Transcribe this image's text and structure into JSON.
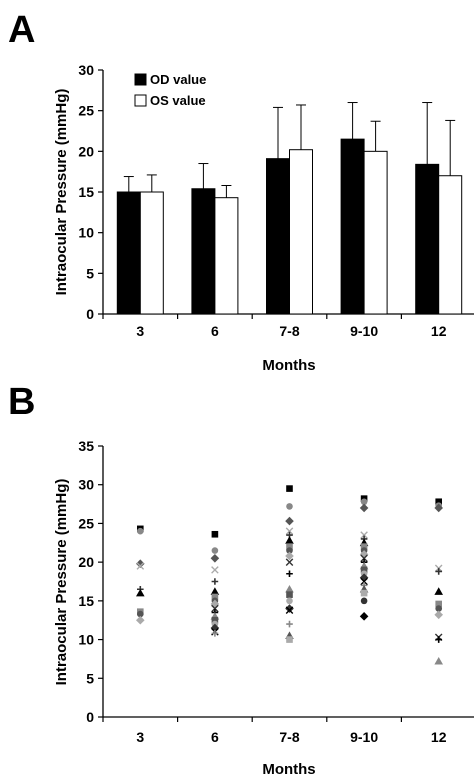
{
  "chart_data": [
    {
      "panel": "A",
      "type": "bar",
      "xlabel": "Months",
      "ylabel": "Intraocular Pressure (mmHg)",
      "ylim": [
        0,
        30
      ],
      "yticks": [
        0,
        5,
        10,
        15,
        20,
        25,
        30
      ],
      "categories": [
        "3",
        "6",
        "7-8",
        "9-10",
        "12"
      ],
      "legend_placement": "top-left",
      "grid": false,
      "series": [
        {
          "name": "OD value",
          "color": "#000000",
          "values": [
            15.0,
            15.4,
            19.1,
            21.5,
            18.4
          ],
          "error": [
            1.9,
            3.1,
            6.3,
            4.5,
            7.6
          ]
        },
        {
          "name": "OS value",
          "color": "#ffffff",
          "values": [
            15.0,
            14.3,
            20.2,
            20.0,
            17.0
          ],
          "error": [
            2.1,
            1.5,
            5.5,
            3.7,
            6.8
          ]
        }
      ]
    },
    {
      "panel": "B",
      "type": "scatter",
      "xlabel": "Months",
      "ylabel": "Intraocular Pressure (mmHg)",
      "ylim": [
        0,
        35
      ],
      "yticks": [
        0,
        5,
        10,
        15,
        20,
        25,
        30,
        35
      ],
      "categories": [
        "3",
        "6",
        "7-8",
        "9-10",
        "12"
      ],
      "grid": false,
      "points": [
        [
          24.3,
          24.0,
          19.8,
          19.5,
          16.5,
          16.0,
          13.6,
          13.3,
          12.5
        ],
        [
          23.6,
          21.5,
          20.5,
          19.0,
          17.5,
          16.2,
          15.5,
          15.0,
          14.6,
          14.0,
          13.5,
          13.0,
          12.5,
          12.0,
          11.5,
          11.0,
          10.8
        ],
        [
          29.5,
          27.2,
          25.3,
          24.0,
          23.5,
          22.8,
          22.0,
          21.5,
          20.8,
          20.0,
          18.5,
          16.5,
          15.8,
          15.0,
          14.0,
          13.8,
          12.0,
          10.5,
          10.0
        ],
        [
          28.2,
          27.8,
          27.0,
          23.5,
          23.0,
          22.5,
          22.0,
          21.5,
          21.0,
          20.5,
          20.0,
          19.5,
          19.0,
          18.5,
          18.0,
          17.5,
          17.0,
          16.5,
          16.0,
          15.0,
          13.0
        ],
        [
          27.8,
          27.3,
          27.0,
          19.2,
          18.8,
          16.2,
          14.6,
          14.0,
          13.2,
          10.3,
          10.0,
          7.2
        ]
      ]
    }
  ]
}
